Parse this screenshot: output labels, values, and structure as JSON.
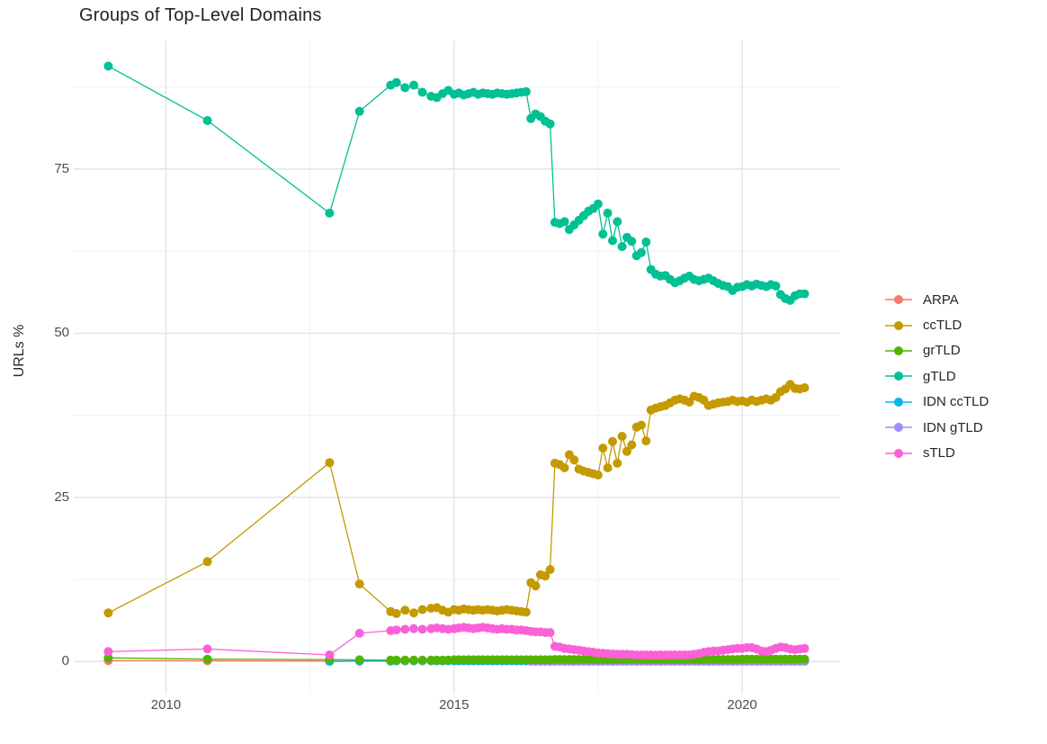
{
  "chart_data": {
    "type": "line",
    "title": "Groups of Top-Level Domains",
    "xlabel": "",
    "ylabel": "URLs %",
    "legend_position": "right",
    "grid": true,
    "xlim": [
      2008.4,
      2021.7
    ],
    "ylim": [
      -4.9,
      94.6
    ],
    "x_ticks": [
      2010,
      2015,
      2020
    ],
    "y_ticks": [
      0,
      25,
      50,
      75
    ],
    "x_minor": [
      2012.5,
      2017.5
    ],
    "y_minor": [
      12.5,
      37.5,
      62.5,
      87.5
    ],
    "draw_order": [
      "ARPA",
      "ccTLD",
      "IDN ccTLD",
      "IDN gTLD",
      "grTLD",
      "gTLD",
      "sTLD"
    ],
    "series": [
      {
        "name": "ARPA",
        "color": "#F8766D",
        "points": [
          [
            2009.0,
            0.15
          ],
          [
            2010.72,
            0.1
          ],
          [
            2012.84,
            0.08
          ],
          [
            2013.36,
            0.06
          ],
          [
            2013.9,
            0.05
          ],
          [
            2014.0,
            0.1
          ],
          [
            2014.15,
            0.1
          ],
          [
            2014.3,
            0.1
          ],
          [
            2014.45,
            0.1
          ],
          [
            2014.6,
            0.1
          ],
          [
            2014.7,
            0.1
          ],
          [
            2014.8,
            0.1
          ],
          [
            2014.9,
            0.1
          ]
        ],
        "monthly": {
          "start": 2015.0,
          "constant": 0.12,
          "count": 74
        }
      },
      {
        "name": "ccTLD",
        "color": "#C49A00",
        "points": [
          [
            2009.0,
            7.4
          ],
          [
            2010.72,
            15.2
          ],
          [
            2012.84,
            30.3
          ],
          [
            2013.36,
            11.8
          ],
          [
            2013.9,
            7.6
          ],
          [
            2014.0,
            7.3
          ],
          [
            2014.15,
            7.8
          ],
          [
            2014.3,
            7.4
          ],
          [
            2014.45,
            7.9
          ],
          [
            2014.6,
            8.1
          ],
          [
            2014.7,
            8.2
          ],
          [
            2014.8,
            7.8
          ],
          [
            2014.9,
            7.5
          ]
        ],
        "monthly": {
          "start": 2015.0,
          "values": [
            7.9,
            7.8,
            8.0,
            7.9,
            7.8,
            7.9,
            7.8,
            7.9,
            7.8,
            7.7,
            7.8,
            7.9,
            7.8,
            7.7,
            7.6,
            7.5,
            12.0,
            11.5,
            13.2,
            13.0,
            14.0,
            30.2,
            30.0,
            29.5,
            31.5,
            30.7,
            29.3,
            29.0,
            28.8,
            28.6,
            28.4,
            32.5,
            29.5,
            33.5,
            30.2,
            34.3,
            32.0,
            33.0,
            35.7,
            36.0,
            33.6,
            38.3,
            38.6,
            38.8,
            39.0,
            39.4,
            39.8,
            40.0,
            39.8,
            39.5,
            40.4,
            40.2,
            39.8,
            39.0,
            39.2,
            39.4,
            39.5,
            39.6,
            39.8,
            39.6,
            39.7,
            39.5,
            39.8,
            39.6,
            39.8,
            40.0,
            39.8,
            40.2,
            41.1,
            41.5,
            42.2,
            41.6,
            41.5,
            41.7
          ]
        }
      },
      {
        "name": "grTLD",
        "color": "#53B400",
        "points": [
          [
            2009.0,
            0.55
          ],
          [
            2010.72,
            0.35
          ],
          [
            2012.84,
            0.3
          ],
          [
            2013.36,
            0.25
          ],
          [
            2013.9,
            0.2
          ],
          [
            2014.0,
            0.2
          ],
          [
            2014.15,
            0.2
          ],
          [
            2014.3,
            0.2
          ],
          [
            2014.45,
            0.2
          ],
          [
            2014.6,
            0.2
          ],
          [
            2014.7,
            0.2
          ],
          [
            2014.8,
            0.2
          ],
          [
            2014.9,
            0.2
          ]
        ],
        "monthly": {
          "start": 2015.0,
          "values": [
            0.25,
            0.25,
            0.25,
            0.25,
            0.25,
            0.25,
            0.25,
            0.25,
            0.25,
            0.25,
            0.25,
            0.25,
            0.25,
            0.25,
            0.25,
            0.25,
            0.25,
            0.25,
            0.25,
            0.25,
            0.25,
            0.3,
            0.3,
            0.3,
            0.3,
            0.3,
            0.3,
            0.3,
            0.3,
            0.3,
            0.3,
            0.3,
            0.3,
            0.3,
            0.3,
            0.3,
            0.3,
            0.3,
            0.3,
            0.3,
            0.3,
            0.3,
            0.3,
            0.3,
            0.3,
            0.3,
            0.3,
            0.3,
            0.3,
            0.3,
            0.3,
            0.3,
            0.3,
            0.3,
            0.3,
            0.3,
            0.3,
            0.3,
            0.3,
            0.3,
            0.35,
            0.35,
            0.35,
            0.35,
            0.35,
            0.35,
            0.35,
            0.35,
            0.35,
            0.35,
            0.35,
            0.35,
            0.35,
            0.35
          ]
        }
      },
      {
        "name": "gTLD",
        "color": "#00C094",
        "points": [
          [
            2009.0,
            90.7
          ],
          [
            2010.72,
            82.4
          ],
          [
            2012.84,
            68.3
          ],
          [
            2013.36,
            83.8
          ],
          [
            2013.9,
            87.8
          ],
          [
            2014.0,
            88.2
          ],
          [
            2014.15,
            87.4
          ],
          [
            2014.3,
            87.8
          ],
          [
            2014.45,
            86.7
          ],
          [
            2014.6,
            86.1
          ],
          [
            2014.7,
            85.9
          ],
          [
            2014.8,
            86.5
          ],
          [
            2014.9,
            87.0
          ]
        ],
        "monthly": {
          "start": 2015.0,
          "values": [
            86.4,
            86.6,
            86.3,
            86.5,
            86.7,
            86.4,
            86.6,
            86.5,
            86.4,
            86.6,
            86.5,
            86.4,
            86.5,
            86.6,
            86.7,
            86.8,
            82.7,
            83.4,
            83.0,
            82.3,
            81.9,
            66.9,
            66.7,
            67.0,
            65.8,
            66.5,
            67.2,
            67.9,
            68.6,
            69.0,
            69.7,
            65.1,
            68.3,
            64.1,
            67.0,
            63.2,
            64.6,
            64.0,
            61.8,
            62.3,
            63.9,
            59.7,
            59.0,
            58.7,
            58.8,
            58.2,
            57.7,
            58.0,
            58.4,
            58.7,
            58.2,
            58.0,
            58.2,
            58.4,
            58.0,
            57.6,
            57.3,
            57.1,
            56.5,
            57.0,
            57.1,
            57.4,
            57.2,
            57.5,
            57.3,
            57.1,
            57.4,
            57.2,
            55.9,
            55.3,
            55.0,
            55.7,
            56.0,
            56.0
          ]
        }
      },
      {
        "name": "IDN ccTLD",
        "color": "#00B6EB",
        "points": [
          [
            2012.84,
            0.02
          ],
          [
            2013.36,
            0.08
          ],
          [
            2013.9,
            0.08
          ],
          [
            2014.0,
            0.1
          ],
          [
            2014.15,
            0.1
          ],
          [
            2014.3,
            0.1
          ],
          [
            2014.45,
            0.1
          ],
          [
            2014.6,
            0.1
          ],
          [
            2014.7,
            0.1
          ],
          [
            2014.8,
            0.1
          ],
          [
            2014.9,
            0.1
          ]
        ],
        "monthly": {
          "start": 2015.0,
          "constant": 0.1,
          "count": 74
        }
      },
      {
        "name": "IDN gTLD",
        "color": "#A58AFF",
        "points": [],
        "monthly": {
          "start": 2016.333,
          "constant": 0.02,
          "count": 58
        }
      },
      {
        "name": "sTLD",
        "color": "#FB61D7",
        "points": [
          [
            2009.0,
            1.5
          ],
          [
            2010.72,
            1.9
          ],
          [
            2012.84,
            1.0
          ],
          [
            2013.36,
            4.3
          ],
          [
            2013.9,
            4.7
          ],
          [
            2014.0,
            4.8
          ],
          [
            2014.15,
            4.9
          ],
          [
            2014.3,
            5.0
          ],
          [
            2014.45,
            4.9
          ],
          [
            2014.6,
            5.0
          ],
          [
            2014.7,
            5.1
          ],
          [
            2014.8,
            5.0
          ],
          [
            2014.9,
            4.9
          ]
        ],
        "monthly": {
          "start": 2015.0,
          "values": [
            5.0,
            5.1,
            5.2,
            5.1,
            5.0,
            5.1,
            5.2,
            5.1,
            5.0,
            4.9,
            5.0,
            4.9,
            4.9,
            4.8,
            4.8,
            4.7,
            4.6,
            4.5,
            4.5,
            4.4,
            4.4,
            2.3,
            2.2,
            2.0,
            1.9,
            1.8,
            1.7,
            1.6,
            1.5,
            1.4,
            1.3,
            1.25,
            1.2,
            1.15,
            1.1,
            1.1,
            1.1,
            1.05,
            1.0,
            1.0,
            1.0,
            1.0,
            0.95,
            1.0,
            1.0,
            1.0,
            1.0,
            1.0,
            1.0,
            1.0,
            1.1,
            1.2,
            1.4,
            1.5,
            1.6,
            1.6,
            1.7,
            1.8,
            1.9,
            2.0,
            2.0,
            2.1,
            2.1,
            1.9,
            1.6,
            1.5,
            1.7,
            2.0,
            2.2,
            2.1,
            1.9,
            1.8,
            1.9,
            2.0
          ]
        }
      }
    ],
    "legend": {
      "items": [
        {
          "label": "ARPA",
          "color": "#F8766D"
        },
        {
          "label": "ccTLD",
          "color": "#C49A00"
        },
        {
          "label": "grTLD",
          "color": "#53B400"
        },
        {
          "label": "gTLD",
          "color": "#00C094"
        },
        {
          "label": "IDN ccTLD",
          "color": "#00B6EB"
        },
        {
          "label": "IDN gTLD",
          "color": "#A58AFF"
        },
        {
          "label": "sTLD",
          "color": "#FB61D7"
        }
      ]
    },
    "style": {
      "grid_major_color": "#e3e3e3",
      "grid_minor_color": "#efefef",
      "tick_label_color": "#4d4d4d",
      "title_color": "#222222",
      "point_radius": 5,
      "line_width": 1.3
    }
  }
}
